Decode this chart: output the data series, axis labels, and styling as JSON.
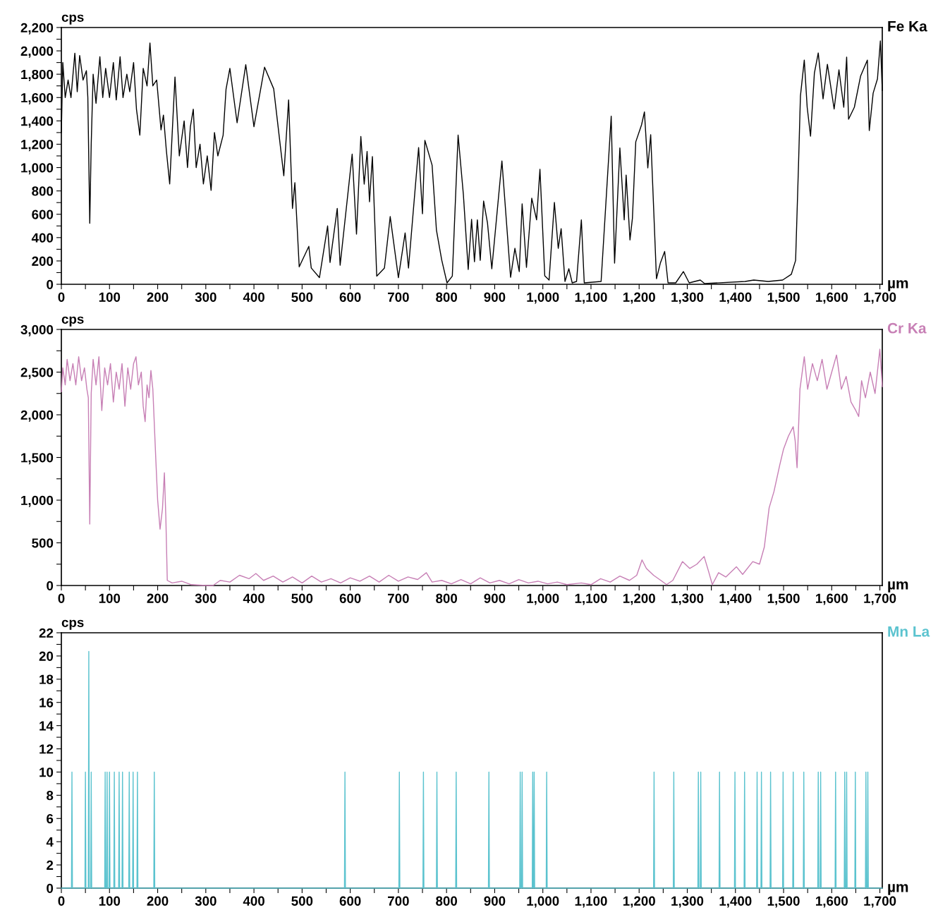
{
  "chart_data": [
    {
      "type": "line",
      "ylabel": "cps",
      "xlabel": "µm",
      "legend": false,
      "grid": false,
      "xlim": [
        0,
        1705
      ],
      "ylim": [
        0,
        2200
      ],
      "xticks": [
        0,
        {
          "value": 50,
          "label": null
        },
        100,
        {
          "value": 150,
          "label": null
        },
        200,
        {
          "value": 250,
          "label": null
        },
        300,
        {
          "value": 350,
          "label": null
        },
        400,
        {
          "value": 450,
          "label": null
        },
        500,
        {
          "value": 550,
          "label": null
        },
        600,
        {
          "value": 650,
          "label": null
        },
        700,
        {
          "value": 750,
          "label": null
        },
        800,
        {
          "value": 850,
          "label": null
        },
        900,
        {
          "value": 950,
          "label": null
        },
        {
          "value": 1000,
          "label": "1,000"
        },
        {
          "value": 1050,
          "label": null
        },
        {
          "value": 1100,
          "label": "1,100"
        },
        {
          "value": 1150,
          "label": null
        },
        {
          "value": 1200,
          "label": "1,200"
        },
        {
          "value": 1250,
          "label": null
        },
        {
          "value": 1300,
          "label": "1,300"
        },
        {
          "value": 1350,
          "label": null
        },
        {
          "value": 1400,
          "label": "1,400"
        },
        {
          "value": 1450,
          "label": null
        },
        {
          "value": 1500,
          "label": "1,500"
        },
        {
          "value": 1550,
          "label": null
        },
        {
          "value": 1600,
          "label": "1,600"
        },
        {
          "value": 1650,
          "label": null
        },
        {
          "value": 1700,
          "label": "1,700"
        }
      ],
      "yticks": [
        0,
        {
          "value": 100,
          "label": null
        },
        200,
        {
          "value": 300,
          "label": null
        },
        400,
        {
          "value": 500,
          "label": null
        },
        600,
        {
          "value": 700,
          "label": null
        },
        800,
        {
          "value": 900,
          "label": null
        },
        {
          "value": 1000,
          "label": "1,000"
        },
        {
          "value": 1100,
          "label": null
        },
        {
          "value": 1200,
          "label": "1,200"
        },
        {
          "value": 1300,
          "label": null
        },
        {
          "value": 1400,
          "label": "1,400"
        },
        {
          "value": 1500,
          "label": null
        },
        {
          "value": 1600,
          "label": "1,600"
        },
        {
          "value": 1700,
          "label": null
        },
        {
          "value": 1800,
          "label": "1,800"
        },
        {
          "value": 1900,
          "label": null
        },
        {
          "value": 2000,
          "label": "2,000"
        },
        {
          "value": 2100,
          "label": null
        },
        {
          "value": 2200,
          "label": "2,200"
        }
      ],
      "series": [
        {
          "name": "Fe Ka",
          "color": "#000000",
          "x": [
            0,
            3,
            8,
            14,
            20,
            28,
            33,
            38,
            45,
            52,
            55,
            59,
            62,
            66,
            72,
            80,
            86,
            92,
            100,
            108,
            114,
            122,
            128,
            136,
            142,
            150,
            156,
            163,
            170,
            178,
            184,
            190,
            198,
            207,
            212,
            218,
            225,
            236,
            245,
            255,
            262,
            268,
            274,
            280,
            288,
            295,
            303,
            311,
            318,
            325,
            336,
            342,
            350,
            365,
            383,
            400,
            422,
            441,
            462,
            472,
            480,
            485,
            494,
            514,
            519,
            536,
            553,
            558,
            573,
            579,
            604,
            613,
            622,
            629,
            635,
            640,
            646,
            655,
            671,
            683,
            700,
            714,
            721,
            742,
            750,
            755,
            770,
            779,
            790,
            801,
            812,
            824,
            835,
            845,
            852,
            858,
            864,
            870,
            877,
            885,
            894,
            915,
            933,
            942,
            951,
            957,
            966,
            977,
            987,
            994,
            1004,
            1013,
            1024,
            1032,
            1038,
            1046,
            1054,
            1061,
            1070,
            1080,
            1086,
            1121,
            1142,
            1149,
            1160,
            1169,
            1173,
            1181,
            1186,
            1193,
            1205,
            1211,
            1218,
            1224,
            1236,
            1244,
            1253,
            1260,
            1276,
            1292,
            1304,
            1327,
            1336,
            1420,
            1438,
            1468,
            1498,
            1516,
            1525,
            1531,
            1535,
            1543,
            1549,
            1556,
            1564,
            1572,
            1582,
            1591,
            1605,
            1615,
            1625,
            1631,
            1635,
            1647,
            1660,
            1674,
            1678,
            1686,
            1695,
            1701,
            1705
          ],
          "values": [
            1300,
            1900,
            1600,
            1750,
            1600,
            1980,
            1650,
            1960,
            1750,
            1830,
            1600,
            523,
            1200,
            1800,
            1550,
            1950,
            1600,
            1850,
            1600,
            1900,
            1580,
            1950,
            1600,
            1800,
            1650,
            1900,
            1500,
            1278,
            1850,
            1700,
            2068,
            1700,
            1750,
            1323,
            1450,
            1150,
            860,
            1776,
            1100,
            1400,
            1000,
            1350,
            1500,
            1000,
            1200,
            860,
            1100,
            805,
            1300,
            1100,
            1278,
            1670,
            1850,
            1384,
            1882,
            1350,
            1860,
            1675,
            930,
            1580,
            650,
            870,
            150,
            325,
            140,
            57,
            500,
            187,
            650,
            163,
            1115,
            430,
            1266,
            858,
            1138,
            707,
            1094,
            70,
            139,
            580,
            57,
            440,
            139,
            1172,
            604,
            1233,
            1021,
            465,
            208,
            12,
            70,
            1278,
            767,
            127,
            556,
            193,
            552,
            205,
            713,
            527,
            133,
            1057,
            60,
            308,
            109,
            689,
            145,
            737,
            552,
            985,
            72,
            36,
            701,
            308,
            477,
            24,
            133,
            12,
            24,
            552,
            12,
            24,
            1440,
            181,
            1168,
            552,
            936,
            380,
            564,
            1220,
            1366,
            1477,
            997,
            1281,
            48,
            181,
            281,
            12,
            12,
            109,
            12,
            36,
            6,
            24,
            36,
            24,
            36,
            85,
            205,
            1021,
            1613,
            1921,
            1517,
            1269,
            1810,
            1982,
            1589,
            1885,
            1502,
            1837,
            1517,
            1946,
            1414,
            1517,
            1785,
            1921,
            1317,
            1637,
            1760,
            2085,
            1660
          ]
        }
      ]
    },
    {
      "type": "line",
      "ylabel": "cps",
      "xlabel": "µm",
      "legend": false,
      "grid": false,
      "xlim": [
        0,
        1705
      ],
      "ylim": [
        0,
        3000
      ],
      "xticks": [
        0,
        {
          "value": 50,
          "label": null
        },
        100,
        {
          "value": 150,
          "label": null
        },
        200,
        {
          "value": 250,
          "label": null
        },
        300,
        {
          "value": 350,
          "label": null
        },
        400,
        {
          "value": 450,
          "label": null
        },
        500,
        {
          "value": 550,
          "label": null
        },
        600,
        {
          "value": 650,
          "label": null
        },
        700,
        {
          "value": 750,
          "label": null
        },
        800,
        {
          "value": 850,
          "label": null
        },
        900,
        {
          "value": 950,
          "label": null
        },
        {
          "value": 1000,
          "label": "1,000"
        },
        {
          "value": 1050,
          "label": null
        },
        {
          "value": 1100,
          "label": "1,100"
        },
        {
          "value": 1150,
          "label": null
        },
        {
          "value": 1200,
          "label": "1,200"
        },
        {
          "value": 1250,
          "label": null
        },
        {
          "value": 1300,
          "label": "1,300"
        },
        {
          "value": 1350,
          "label": null
        },
        {
          "value": 1400,
          "label": "1,400"
        },
        {
          "value": 1450,
          "label": null
        },
        {
          "value": 1500,
          "label": "1,500"
        },
        {
          "value": 1550,
          "label": null
        },
        {
          "value": 1600,
          "label": "1,600"
        },
        {
          "value": 1650,
          "label": null
        },
        {
          "value": 1700,
          "label": "1,700"
        }
      ],
      "yticks": [
        0,
        {
          "value": 250,
          "label": null
        },
        500,
        {
          "value": 750,
          "label": null
        },
        {
          "value": 1000,
          "label": "1,000"
        },
        {
          "value": 1250,
          "label": null
        },
        {
          "value": 1500,
          "label": "1,500"
        },
        {
          "value": 1750,
          "label": null
        },
        {
          "value": 2000,
          "label": "2,000"
        },
        {
          "value": 2250,
          "label": null
        },
        {
          "value": 2500,
          "label": "2,500"
        },
        {
          "value": 2750,
          "label": null
        },
        {
          "value": 3000,
          "label": "3,000"
        }
      ],
      "series": [
        {
          "name": "Cr Ka",
          "color": "#c77fb5",
          "x": [
            0,
            3,
            8,
            12,
            18,
            24,
            30,
            36,
            42,
            48,
            53,
            56,
            59,
            62,
            66,
            72,
            78,
            84,
            90,
            96,
            102,
            108,
            114,
            120,
            126,
            132,
            138,
            144,
            150,
            155,
            160,
            166,
            170,
            174,
            178,
            182,
            186,
            190,
            196,
            200,
            205,
            210,
            214,
            217,
            220,
            230,
            250,
            270,
            300,
            315,
            330,
            350,
            370,
            390,
            404,
            420,
            440,
            460,
            480,
            500,
            520,
            540,
            560,
            580,
            600,
            620,
            640,
            660,
            680,
            700,
            720,
            740,
            758,
            770,
            790,
            810,
            830,
            850,
            870,
            890,
            910,
            930,
            950,
            970,
            990,
            1010,
            1030,
            1050,
            1080,
            1100,
            1120,
            1140,
            1160,
            1180,
            1195,
            1206,
            1215,
            1230,
            1245,
            1257,
            1270,
            1290,
            1305,
            1320,
            1335,
            1345,
            1352,
            1365,
            1380,
            1402,
            1415,
            1436,
            1450,
            1460,
            1470,
            1480,
            1492,
            1500,
            1510,
            1520,
            1524,
            1528,
            1534,
            1543,
            1550,
            1560,
            1570,
            1580,
            1590,
            1600,
            1610,
            1620,
            1630,
            1640,
            1650,
            1656,
            1662,
            1670,
            1680,
            1690,
            1700,
            1705
          ],
          "values": [
            2270,
            2550,
            2350,
            2650,
            2400,
            2600,
            2350,
            2680,
            2400,
            2550,
            2300,
            2200,
            720,
            2250,
            2650,
            2350,
            2680,
            2050,
            2550,
            2350,
            2600,
            2150,
            2500,
            2300,
            2600,
            2100,
            2550,
            2300,
            2600,
            2680,
            2350,
            2500,
            2100,
            1920,
            2350,
            2200,
            2520,
            2300,
            1500,
            1000,
            660,
            900,
            1320,
            800,
            60,
            30,
            50,
            10,
            0,
            0,
            60,
            40,
            120,
            80,
            140,
            60,
            110,
            40,
            100,
            30,
            110,
            40,
            80,
            30,
            90,
            50,
            110,
            40,
            120,
            50,
            100,
            70,
            150,
            40,
            60,
            20,
            70,
            20,
            90,
            30,
            60,
            20,
            70,
            30,
            50,
            20,
            40,
            10,
            30,
            10,
            80,
            40,
            110,
            60,
            120,
            300,
            200,
            120,
            60,
            10,
            60,
            280,
            200,
            250,
            340,
            150,
            10,
            150,
            100,
            220,
            130,
            280,
            250,
            450,
            910,
            1100,
            1410,
            1600,
            1750,
            1860,
            1700,
            1380,
            2300,
            2680,
            2300,
            2600,
            2400,
            2650,
            2300,
            2500,
            2700,
            2300,
            2450,
            2150,
            2050,
            1980,
            2400,
            2200,
            2500,
            2250,
            2770,
            2330
          ]
        }
      ]
    },
    {
      "type": "line",
      "ylabel": "cps",
      "xlabel": "µm",
      "legend": false,
      "grid": false,
      "xlim": [
        0,
        1705
      ],
      "ylim": [
        0,
        22
      ],
      "xticks": [
        0,
        {
          "value": 50,
          "label": null
        },
        100,
        {
          "value": 150,
          "label": null
        },
        200,
        {
          "value": 250,
          "label": null
        },
        300,
        {
          "value": 350,
          "label": null
        },
        400,
        {
          "value": 450,
          "label": null
        },
        500,
        {
          "value": 550,
          "label": null
        },
        600,
        {
          "value": 650,
          "label": null
        },
        700,
        {
          "value": 750,
          "label": null
        },
        800,
        {
          "value": 850,
          "label": null
        },
        900,
        {
          "value": 950,
          "label": null
        },
        {
          "value": 1000,
          "label": "1,000"
        },
        {
          "value": 1050,
          "label": null
        },
        {
          "value": 1100,
          "label": "1,100"
        },
        {
          "value": 1150,
          "label": null
        },
        {
          "value": 1200,
          "label": "1,200"
        },
        {
          "value": 1250,
          "label": null
        },
        {
          "value": 1300,
          "label": "1,300"
        },
        {
          "value": 1350,
          "label": null
        },
        {
          "value": 1400,
          "label": "1,400"
        },
        {
          "value": 1450,
          "label": null
        },
        {
          "value": 1500,
          "label": "1,500"
        },
        {
          "value": 1550,
          "label": null
        },
        {
          "value": 1600,
          "label": "1,600"
        },
        {
          "value": 1650,
          "label": null
        },
        {
          "value": 1700,
          "label": "1,700"
        }
      ],
      "yticks": [
        0,
        {
          "value": 1,
          "label": null
        },
        2,
        {
          "value": 3,
          "label": null
        },
        4,
        {
          "value": 5,
          "label": null
        },
        6,
        {
          "value": 7,
          "label": null
        },
        8,
        {
          "value": 9,
          "label": null
        },
        10,
        {
          "value": 11,
          "label": null
        },
        12,
        {
          "value": 13,
          "label": null
        },
        14,
        {
          "value": 15,
          "label": null
        },
        16,
        {
          "value": 17,
          "label": null
        },
        18,
        {
          "value": 19,
          "label": null
        },
        20,
        {
          "value": 21,
          "label": null
        },
        22
      ],
      "series": [
        {
          "name": "Mn La",
          "color": "#5bc3cf",
          "x": [
            0,
            21,
            22,
            23,
            49,
            50,
            51,
            56,
            57,
            58,
            61,
            62,
            63,
            90,
            91,
            92,
            94,
            95,
            96,
            99,
            100,
            101,
            109,
            110,
            111,
            119,
            120,
            121,
            126,
            127,
            128,
            140,
            141,
            142,
            148,
            149,
            150,
            157,
            158,
            159,
            192,
            193,
            194,
            588,
            589,
            590,
            701,
            702,
            703,
            751,
            752,
            753,
            779,
            780,
            781,
            819,
            820,
            821,
            887,
            888,
            889,
            952,
            953,
            954,
            956,
            957,
            958,
            978,
            979,
            980,
            981,
            982,
            983,
            1007,
            1008,
            1009,
            1230,
            1231,
            1232,
            1271,
            1272,
            1273,
            1322,
            1323,
            1324,
            1327,
            1328,
            1329,
            1366,
            1367,
            1368,
            1398,
            1399,
            1400,
            1418,
            1419,
            1420,
            1444,
            1445,
            1446,
            1453,
            1454,
            1455,
            1472,
            1473,
            1474,
            1498,
            1499,
            1500,
            1519,
            1520,
            1521,
            1541,
            1542,
            1543,
            1571,
            1572,
            1573,
            1576,
            1577,
            1578,
            1607,
            1608,
            1609,
            1626,
            1627,
            1628,
            1630,
            1631,
            1632,
            1648,
            1649,
            1650,
            1670,
            1671,
            1672,
            1674,
            1675,
            1676,
            1705
          ],
          "values": [
            0,
            0,
            10,
            0,
            0,
            10,
            0,
            0,
            20.4,
            0,
            0,
            10,
            0,
            0,
            10,
            0,
            0,
            10,
            0,
            0,
            10,
            0,
            0,
            10,
            0,
            0,
            10,
            0,
            0,
            10,
            0,
            0,
            10,
            0,
            0,
            10,
            0,
            0,
            10,
            0,
            0,
            10,
            0,
            0,
            10,
            0,
            0,
            10,
            0,
            0,
            10,
            0,
            0,
            10,
            0,
            0,
            10,
            0,
            0,
            10,
            0,
            0,
            10,
            0,
            0,
            10,
            0,
            0,
            10,
            0,
            0,
            10,
            0,
            0,
            10,
            0,
            0,
            10,
            0,
            0,
            10,
            0,
            0,
            10,
            0,
            0,
            10,
            0,
            0,
            10,
            0,
            0,
            10,
            0,
            0,
            10,
            0,
            0,
            10,
            0,
            0,
            10,
            0,
            0,
            10,
            0,
            0,
            10,
            0,
            0,
            10,
            0,
            0,
            10,
            0,
            0,
            10,
            0,
            0,
            10,
            0,
            0,
            10,
            0,
            0,
            10,
            0,
            0,
            10,
            0,
            0,
            10,
            0,
            0,
            10,
            0,
            0,
            10,
            0,
            0
          ]
        }
      ]
    }
  ]
}
